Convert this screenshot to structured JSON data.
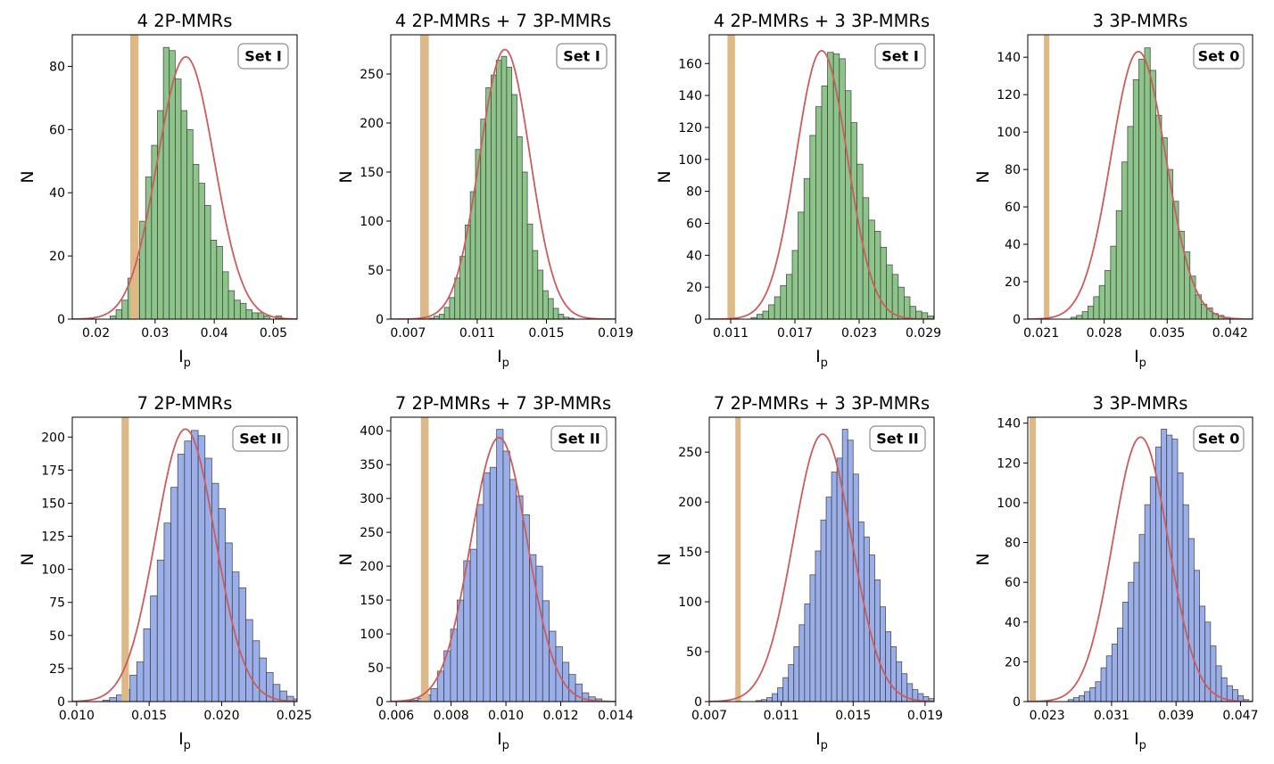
{
  "chart_data": [
    {
      "type": "bar",
      "title": "4 2P-MMRs",
      "badge": "Set I",
      "xlabel": "I",
      "xlabel_sub": "p",
      "ylabel": "N",
      "xlim": [
        0.016,
        0.054
      ],
      "ylim": [
        0,
        90
      ],
      "xticks": [
        "0.02",
        "0.03",
        "0.04",
        "0.05"
      ],
      "xtick_values": [
        0.02,
        0.03,
        0.04,
        0.05
      ],
      "yticks": [
        "0",
        "20",
        "40",
        "60",
        "80"
      ],
      "ytick_values": [
        0,
        20,
        40,
        60,
        80
      ],
      "bin_start": 0.0214,
      "bin_width": 0.001,
      "counts": [
        0,
        1,
        3,
        6,
        13,
        19,
        31,
        45,
        55,
        66,
        86,
        85,
        76,
        66,
        60,
        49,
        43,
        36,
        25,
        23,
        15,
        9,
        6,
        5,
        3,
        2,
        2,
        1,
        0,
        1
      ],
      "fit": {
        "mean": 0.0352,
        "sigma": 0.0048,
        "peak": 83
      },
      "threshold": [
        0.0258,
        0.0272
      ],
      "bar_color": "#8cc48a",
      "threshold_color": "#deb887",
      "fit_color": "#cd5c5c"
    },
    {
      "type": "bar",
      "title": "4 2P-MMRs + 7 3P-MMRs",
      "badge": "Set I",
      "xlabel": "I",
      "xlabel_sub": "p",
      "ylabel": "N",
      "xlim": [
        0.006,
        0.019
      ],
      "ylim": [
        0,
        290
      ],
      "xticks": [
        "0.007",
        "0.011",
        "0.015",
        "0.019"
      ],
      "xtick_values": [
        0.007,
        0.011,
        0.015,
        0.019
      ],
      "yticks": [
        "0",
        "50",
        "100",
        "150",
        "200",
        "250"
      ],
      "ytick_values": [
        0,
        50,
        100,
        150,
        200,
        250
      ],
      "bin_start": 0.0082,
      "bin_width": 0.0003,
      "counts": [
        1,
        3,
        5,
        12,
        22,
        42,
        64,
        96,
        130,
        173,
        204,
        236,
        249,
        264,
        268,
        257,
        229,
        186,
        150,
        97,
        70,
        50,
        29,
        21,
        11,
        5,
        2,
        1
      ],
      "fit": {
        "mean": 0.0126,
        "sigma": 0.00145,
        "peak": 275
      },
      "threshold": [
        0.0077,
        0.0082
      ],
      "bar_color": "#8cc48a",
      "threshold_color": "#deb887",
      "fit_color": "#cd5c5c"
    },
    {
      "type": "bar",
      "title": "4 2P-MMRs + 3 3P-MMRs",
      "badge": "Set I",
      "xlabel": "I",
      "xlabel_sub": "p",
      "ylabel": "N",
      "xlim": [
        0.009,
        0.03
      ],
      "ylim": [
        0,
        178
      ],
      "xticks": [
        "0.011",
        "0.017",
        "0.023",
        "0.029"
      ],
      "xtick_values": [
        0.011,
        0.017,
        0.023,
        0.029
      ],
      "yticks": [
        "0",
        "20",
        "40",
        "60",
        "80",
        "100",
        "120",
        "140",
        "160"
      ],
      "ytick_values": [
        0,
        20,
        40,
        60,
        80,
        100,
        120,
        140,
        160
      ],
      "bin_start": 0.0129,
      "bin_width": 0.00055,
      "counts": [
        1,
        3,
        5,
        9,
        14,
        21,
        28,
        43,
        67,
        88,
        115,
        133,
        146,
        167,
        166,
        163,
        143,
        123,
        97,
        76,
        62,
        55,
        45,
        34,
        28,
        20,
        14,
        8,
        5,
        4,
        2,
        1
      ],
      "fit": {
        "mean": 0.0195,
        "sigma": 0.0024,
        "peak": 168
      },
      "threshold": [
        0.0107,
        0.0114
      ],
      "bar_color": "#8cc48a",
      "threshold_color": "#deb887",
      "fit_color": "#cd5c5c"
    },
    {
      "type": "bar",
      "title": "3 3P-MMRs",
      "badge": "Set 0",
      "xlabel": "I",
      "xlabel_sub": "p",
      "ylabel": "N",
      "xlim": [
        0.0195,
        0.0445
      ],
      "ylim": [
        0,
        152
      ],
      "xticks": [
        "0.021",
        "0.028",
        "0.035",
        "0.042"
      ],
      "xtick_values": [
        0.021,
        0.028,
        0.035,
        0.042
      ],
      "yticks": [
        "0",
        "20",
        "40",
        "60",
        "80",
        "100",
        "120",
        "140"
      ],
      "ytick_values": [
        0,
        20,
        40,
        60,
        80,
        100,
        120,
        140
      ],
      "bin_start": 0.0243,
      "bin_width": 0.00063,
      "counts": [
        1,
        2,
        4,
        7,
        12,
        18,
        26,
        39,
        58,
        84,
        103,
        128,
        139,
        145,
        133,
        109,
        97,
        80,
        63,
        47,
        36,
        23,
        13,
        8,
        6,
        3,
        2,
        1
      ],
      "fit": {
        "mean": 0.0318,
        "sigma": 0.00305,
        "peak": 143
      },
      "threshold": [
        0.0213,
        0.0219
      ],
      "bar_color": "#8cc48a",
      "threshold_color": "#deb887",
      "fit_color": "#cd5c5c"
    },
    {
      "type": "bar",
      "title": "7 2P-MMRs",
      "badge": "Set II",
      "xlabel": "I",
      "xlabel_sub": "p",
      "ylabel": "N",
      "xlim": [
        0.0097,
        0.0252
      ],
      "ylim": [
        0,
        215
      ],
      "xticks": [
        "0.010",
        "0.015",
        "0.020",
        "0.025"
      ],
      "xtick_values": [
        0.01,
        0.015,
        0.02,
        0.025
      ],
      "yticks": [
        "0",
        "25",
        "50",
        "75",
        "100",
        "125",
        "150",
        "175",
        "200"
      ],
      "ytick_values": [
        0,
        25,
        50,
        75,
        100,
        125,
        150,
        175,
        200
      ],
      "bin_start": 0.0118,
      "bin_width": 0.00047,
      "counts": [
        1,
        3,
        5,
        9,
        20,
        30,
        55,
        80,
        107,
        135,
        162,
        187,
        197,
        205,
        201,
        184,
        165,
        146,
        120,
        98,
        86,
        62,
        46,
        33,
        22,
        13,
        8,
        4,
        2,
        1
      ],
      "fit": {
        "mean": 0.0175,
        "sigma": 0.00205,
        "peak": 206
      },
      "threshold": [
        0.0131,
        0.0136
      ],
      "bar_color": "#9aaeea",
      "threshold_color": "#deb887",
      "fit_color": "#cd5c5c"
    },
    {
      "type": "bar",
      "title": "7 2P-MMRs + 7 3P-MMRs",
      "badge": "Set II",
      "xlabel": "I",
      "xlabel_sub": "p",
      "ylabel": "N",
      "xlim": [
        0.0058,
        0.014
      ],
      "ylim": [
        0,
        420
      ],
      "xticks": [
        "0.006",
        "0.008",
        "0.010",
        "0.012",
        "0.014"
      ],
      "xtick_values": [
        0.006,
        0.008,
        0.01,
        0.012,
        0.014
      ],
      "yticks": [
        "0",
        "50",
        "100",
        "150",
        "200",
        "250",
        "300",
        "350",
        "400"
      ],
      "ytick_values": [
        0,
        50,
        100,
        150,
        200,
        250,
        300,
        350,
        400
      ],
      "bin_start": 0.0063,
      "bin_width": 0.00024,
      "counts": [
        1,
        2,
        5,
        10,
        19,
        45,
        75,
        107,
        150,
        208,
        225,
        291,
        338,
        346,
        402,
        370,
        328,
        304,
        276,
        217,
        200,
        149,
        104,
        81,
        58,
        40,
        26,
        13,
        7,
        4,
        1
      ],
      "fit": {
        "mean": 0.00975,
        "sigma": 0.00103,
        "peak": 390
      },
      "threshold": [
        0.0069,
        0.00718
      ],
      "bar_color": "#9aaeea",
      "threshold_color": "#deb887",
      "fit_color": "#cd5c5c"
    },
    {
      "type": "bar",
      "title": "7 2P-MMRs + 3 3P-MMRs",
      "badge": "Set II",
      "xlabel": "I",
      "xlabel_sub": "p",
      "ylabel": "N",
      "xlim": [
        0.007,
        0.0195
      ],
      "ylim": [
        0,
        285
      ],
      "xticks": [
        "0.007",
        "0.011",
        "0.015",
        "0.019"
      ],
      "xtick_values": [
        0.007,
        0.011,
        0.015,
        0.019
      ],
      "yticks": [
        "0",
        "50",
        "100",
        "150",
        "200",
        "250"
      ],
      "ytick_values": [
        0,
        50,
        100,
        150,
        200,
        250
      ],
      "bin_start": 0.0096,
      "bin_width": 0.0003,
      "counts": [
        1,
        2,
        4,
        8,
        14,
        24,
        37,
        55,
        77,
        98,
        127,
        151,
        182,
        205,
        230,
        244,
        273,
        262,
        228,
        180,
        165,
        147,
        122,
        95,
        70,
        55,
        40,
        28,
        18,
        12,
        8,
        5,
        3,
        1
      ],
      "fit": {
        "mean": 0.0133,
        "sigma": 0.00162,
        "peak": 268
      },
      "threshold": [
        0.00845,
        0.00875
      ],
      "bar_color": "#9aaeea",
      "threshold_color": "#deb887",
      "fit_color": "#cd5c5c"
    },
    {
      "type": "bar",
      "title": "3 3P-MMRs",
      "badge": "Set 0",
      "xlabel": "I",
      "xlabel_sub": "p",
      "ylabel": "N",
      "xlim": [
        0.0206,
        0.0485
      ],
      "ylim": [
        0,
        143
      ],
      "xticks": [
        "0.023",
        "0.031",
        "0.039",
        "0.047"
      ],
      "xtick_values": [
        0.023,
        0.031,
        0.039,
        0.047
      ],
      "yticks": [
        "0",
        "20",
        "40",
        "60",
        "80",
        "100",
        "120",
        "140"
      ],
      "ytick_values": [
        0,
        20,
        40,
        60,
        80,
        100,
        120,
        140
      ],
      "bin_start": 0.0256,
      "bin_width": 0.00068,
      "counts": [
        1,
        2,
        3,
        5,
        7,
        10,
        17,
        23,
        29,
        37,
        50,
        60,
        70,
        84,
        99,
        113,
        128,
        137,
        134,
        132,
        115,
        99,
        82,
        66,
        48,
        40,
        28,
        18,
        12,
        8,
        6,
        3,
        1
      ],
      "fit": {
        "mean": 0.0346,
        "sigma": 0.00345,
        "peak": 133
      },
      "threshold": [
        0.0208,
        0.0216
      ],
      "bar_color": "#9aaeea",
      "threshold_color": "#deb887",
      "fit_color": "#cd5c5c"
    }
  ]
}
